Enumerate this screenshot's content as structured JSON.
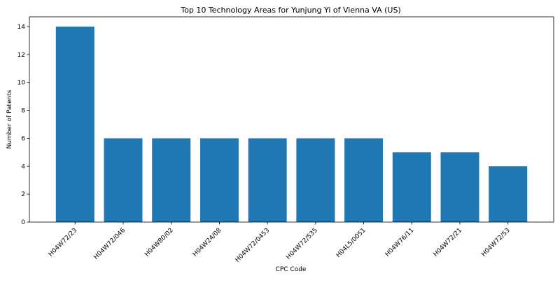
{
  "chart_data": {
    "type": "bar",
    "title": "Top 10 Technology Areas for Yunjung Yi of Vienna VA (US)",
    "xlabel": "CPC Code",
    "ylabel": "Number of Patents",
    "categories": [
      "H04W72/23",
      "H04W72/046",
      "H04W80/02",
      "H04W24/08",
      "H04W72/0453",
      "H04W72/535",
      "H04L5/0051",
      "H04W76/11",
      "H04W72/21",
      "H04W72/53"
    ],
    "values": [
      14,
      6,
      6,
      6,
      6,
      6,
      6,
      5,
      5,
      4
    ],
    "ylim": [
      0,
      14.7
    ],
    "yticks": [
      0,
      2,
      4,
      6,
      8,
      10,
      12,
      14
    ],
    "bar_color": "#1f77b4",
    "grid": false,
    "legend": "none"
  }
}
